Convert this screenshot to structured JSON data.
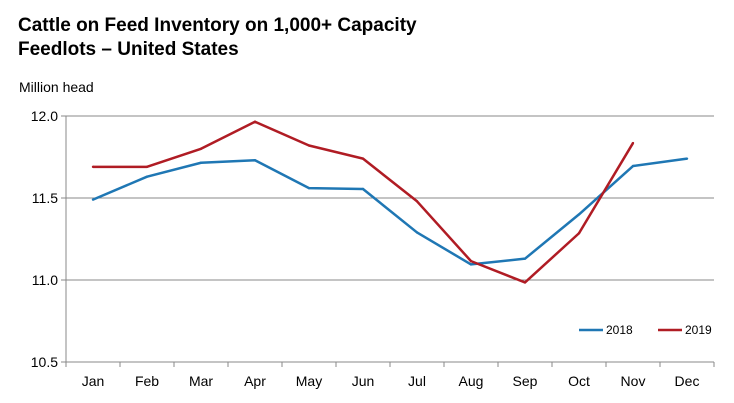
{
  "chart_data": {
    "type": "line",
    "title_line1": "Cattle on Feed Inventory on 1,000+ Capacity",
    "title_line2": "Feedlots – United States",
    "ylabel": "Million head",
    "xlabel": "",
    "categories": [
      "Jan",
      "Feb",
      "Mar",
      "Apr",
      "May",
      "Jun",
      "Jul",
      "Aug",
      "Sep",
      "Oct",
      "Nov",
      "Dec"
    ],
    "ylim": [
      10.5,
      12.0
    ],
    "yticks": [
      10.5,
      11.0,
      11.5,
      12.0
    ],
    "ytick_labels": [
      "10.5",
      "11.0",
      "11.5",
      "12.0"
    ],
    "grid": true,
    "legend_position": "bottom-right",
    "series": [
      {
        "name": "2018",
        "color": "#1f77b4",
        "values": [
          11.49,
          11.63,
          11.715,
          11.73,
          11.56,
          11.555,
          11.29,
          11.095,
          11.13,
          11.4,
          11.695,
          11.74
        ]
      },
      {
        "name": "2019",
        "color": "#b01c24",
        "values": [
          11.69,
          11.69,
          11.8,
          11.965,
          11.82,
          11.74,
          11.48,
          11.115,
          10.985,
          11.285,
          11.835,
          null
        ]
      }
    ]
  }
}
